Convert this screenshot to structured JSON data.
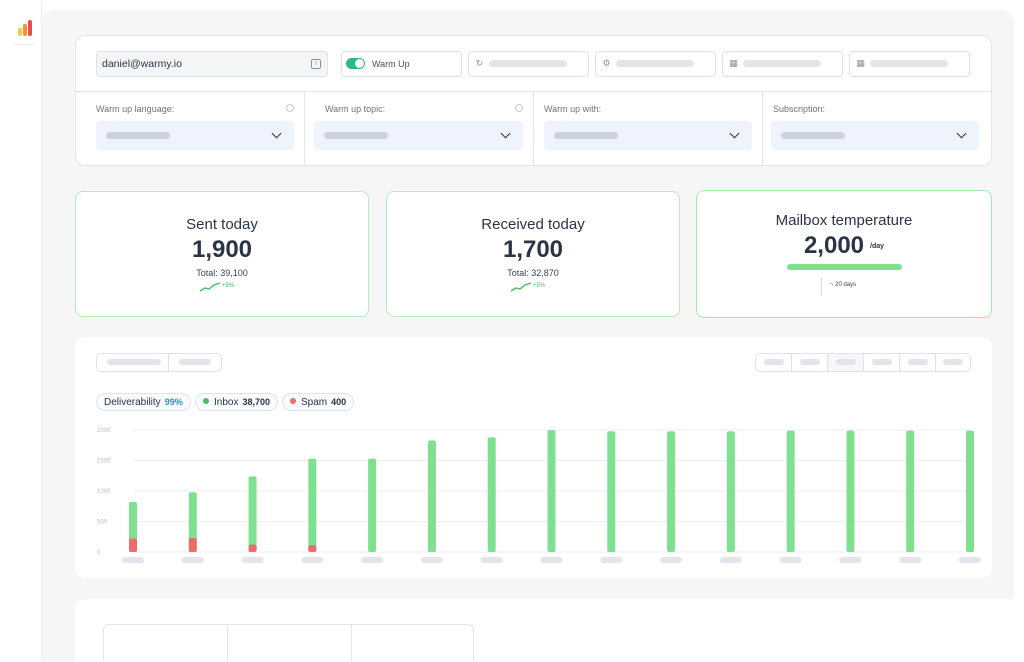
{
  "colors": {
    "accent_green": "#7fe08f",
    "spam_red": "#ef6b6b",
    "toggle_green": "#2aba8a",
    "logo": [
      "#f7c948",
      "#f58e3b",
      "#ef4a4a"
    ]
  },
  "account": {
    "email": "daniel@warmy.io",
    "info_icon": "info-icon"
  },
  "toolbar": {
    "warmup_label": "Warm Up",
    "warmup_enabled": true,
    "placeholder_icons": [
      "refresh-icon",
      "gear-icon",
      "calendar-icon",
      "calendar-icon"
    ]
  },
  "settings": {
    "columns": [
      {
        "label": "Warm up language:",
        "has_info": true
      },
      {
        "label": "Warm up topic:",
        "has_info": true
      },
      {
        "label": "Warm up with:",
        "has_info": false
      },
      {
        "label": "Subscription:",
        "has_info": false
      }
    ]
  },
  "stats": {
    "sent": {
      "title": "Sent today",
      "value": "1,900",
      "total": "Total: 39,100",
      "trend": "+5%"
    },
    "received": {
      "title": "Received today",
      "value": "1,700",
      "total": "Total: 32,870",
      "trend": "+5%"
    },
    "temperature": {
      "title": "Mailbox temperature",
      "value": "2,000",
      "unit": "/day",
      "days": "~ 20 days"
    }
  },
  "legend": {
    "deliverability_label": "Deliverability",
    "deliverability_value": "99%",
    "inbox_label": "Inbox",
    "inbox_value": "38,700",
    "spam_label": "Spam",
    "spam_value": "400"
  },
  "chart_data": {
    "type": "bar",
    "stacked": true,
    "y_ticks": [
      0,
      500,
      1000,
      1500,
      2000
    ],
    "ylim": [
      0,
      2000
    ],
    "grid": true,
    "series": [
      {
        "name": "Inbox",
        "values": [
          600,
          750,
          1120,
          1420,
          1530,
          1830,
          1880,
          2000,
          1980,
          1980,
          1980,
          1990,
          1990,
          1990,
          1990
        ]
      },
      {
        "name": "Spam",
        "values": [
          220,
          230,
          120,
          110,
          0,
          0,
          0,
          0,
          0,
          0,
          0,
          0,
          0,
          0,
          0
        ]
      }
    ],
    "categories_count": 15
  }
}
